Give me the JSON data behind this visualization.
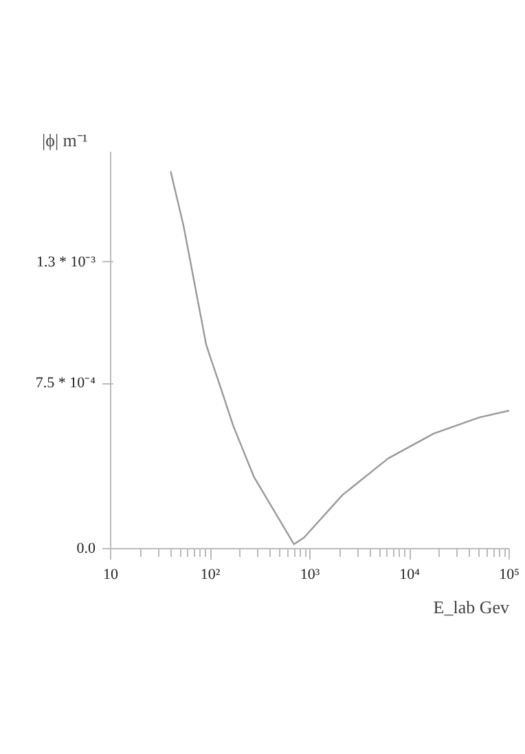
{
  "chart_data": {
    "type": "line",
    "xlabel": "E_lab Gev",
    "ylabel": "|ϕ| m⁻¹",
    "log": "x",
    "grid": false,
    "marker": "none",
    "line_style": "solid",
    "x": [
      40,
      54,
      91,
      101,
      125,
      171,
      274,
      692,
      871,
      2130,
      6090,
      17460,
      50000,
      100000
    ],
    "series": [
      {
        "color": "#999999",
        "values": [
          0.001711,
          0.001463,
          0.000925,
          0.000863,
          0.00074,
          0.000554,
          0.000326,
          2e-05,
          5e-05,
          0.000244,
          0.000409,
          0.000522,
          0.000595,
          0.000626
        ]
      }
    ],
    "xlim": [
      10,
      100000
    ],
    "ylim": [
      0,
      0.0018
    ],
    "xticks": [
      10,
      {
        "value": 100,
        "label": "10²"
      },
      {
        "value": 1000,
        "label": "10³"
      },
      {
        "value": 10000,
        "label": "10⁴"
      },
      {
        "value": 100000,
        "label": "10⁵"
      }
    ],
    "yticks": [
      {
        "value": 0,
        "label": "0.0"
      },
      {
        "value": 0.00075,
        "label": "7.5 * 10⁻⁴"
      },
      {
        "value": 0.0013,
        "label": "1.3 * 10⁻³"
      }
    ]
  }
}
